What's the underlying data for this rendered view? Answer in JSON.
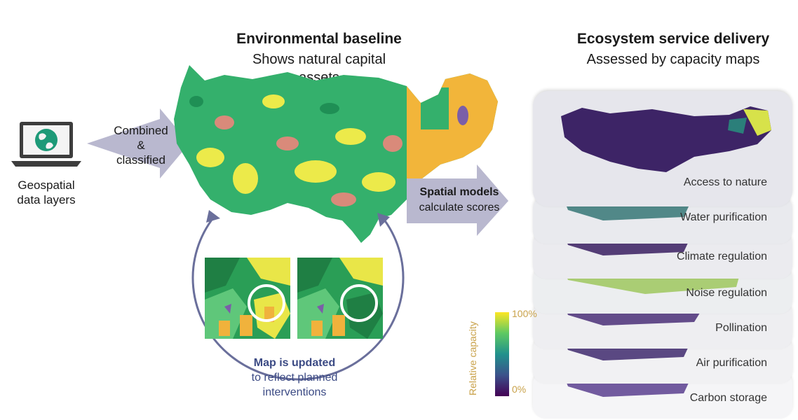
{
  "baseline": {
    "title": "Environmental baseline",
    "subtitle_line1": "Shows natural capital",
    "subtitle_line2": "assets"
  },
  "delivery": {
    "title": "Ecosystem service delivery",
    "subtitle": "Assessed by capacity maps"
  },
  "source": {
    "label_line1": "Geospatial",
    "label_line2": "data layers",
    "icon": "laptop-globe-icon"
  },
  "combine_arrow": {
    "line1": "Combined",
    "line2": "&",
    "line3": "classified"
  },
  "models_arrow": {
    "bold": "Spatial models",
    "normal": "calculate scores"
  },
  "update_loop": {
    "bold": "Map is updated",
    "line2": "to reflect planned",
    "line3": "interventions"
  },
  "capacity_layers": [
    "Access to nature",
    "Water purification",
    "Climate regulation",
    "Noise regulation",
    "Pollination",
    "Air purification",
    "Carbon storage"
  ],
  "colorbar": {
    "title": "Relative capacity",
    "max_label": "100%",
    "min_label": "0%"
  },
  "colors": {
    "arrow": "#b9b8cf",
    "loop": "#6a6f9b",
    "update_text": "#3b4a84",
    "colorbar_title": "#c9a24a",
    "map_green": "#34b06c",
    "map_yellow": "#ecea4a",
    "map_orange": "#f2b53a",
    "map_pink": "#d98a7a",
    "viridis_low": "#440154",
    "viridis_mid": "#21918c",
    "viridis_high": "#fde725"
  }
}
